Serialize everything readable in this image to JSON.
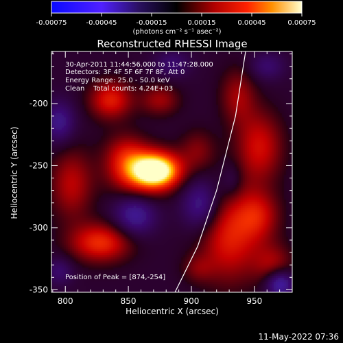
{
  "colorbar": {
    "tick_labels": [
      "-0.00075",
      "-0.00045",
      "-0.00015",
      "0.00015",
      "0.00045",
      "0.00075"
    ],
    "tick_values": [
      -0.00075,
      -0.00045,
      -0.00015,
      0.00015,
      0.00045,
      0.00075
    ],
    "range": [
      -0.00075,
      0.00075
    ],
    "units_label": "(photons cm⁻² s⁻¹ asec⁻²)"
  },
  "annotations": {
    "line1": "30-Apr-2011 11:44:56.000 to 11:47:28.000",
    "line2": "Detectors: 3F 4F 5F 6F 7F 8F, Att 0",
    "line3": "Energy Range: 25.0 - 50.0 keV",
    "line4": "Clean    Total counts: 4.24E+03",
    "peak": "Position of Peak = [874,-254]"
  },
  "timestamp": "11-May-2022 07:36",
  "colors": {
    "background": "#000000",
    "negative": "#2020ff",
    "zero": "#000000",
    "positive_low": "#c00000",
    "positive_mid": "#ff6000",
    "positive_high": "#ffff80"
  },
  "chart_data": {
    "type": "heatmap",
    "title": "Reconstructed RHESSI Image",
    "xlabel": "Heliocentric X (arcsec)",
    "ylabel": "Heliocentric Y (arcsec)",
    "xlim": [
      789,
      980
    ],
    "ylim": [
      -352,
      -158
    ],
    "xticks": [
      800,
      850,
      900,
      950
    ],
    "yticks": [
      -350,
      -300,
      -250,
      -200
    ],
    "colormap": "blue-black-red-yellow-white",
    "peak": [
      874,
      -254
    ],
    "limb_curve": [
      [
        887,
        -352
      ],
      [
        905,
        -315
      ],
      [
        920,
        -270
      ],
      [
        935,
        -210
      ],
      [
        943,
        -158
      ]
    ],
    "sources": [
      {
        "x": 874,
        "y": -254,
        "sx": 13,
        "sy": 10,
        "amp": 0.00075
      },
      {
        "x": 858,
        "y": -256,
        "sx": 16,
        "sy": 13,
        "amp": 0.00045
      },
      {
        "x": 828,
        "y": -312,
        "sx": 17,
        "sy": 11,
        "amp": 0.00045
      },
      {
        "x": 805,
        "y": -265,
        "sx": 12,
        "sy": 20,
        "amp": 0.0003
      },
      {
        "x": 836,
        "y": -197,
        "sx": 12,
        "sy": 11,
        "amp": 0.0004
      },
      {
        "x": 875,
        "y": -197,
        "sx": 11,
        "sy": 9,
        "amp": 0.00025
      },
      {
        "x": 930,
        "y": -307,
        "sx": 17,
        "sy": 26,
        "amp": 0.0004
      },
      {
        "x": 953,
        "y": -290,
        "sx": 12,
        "sy": 14,
        "amp": 0.0003
      },
      {
        "x": 954,
        "y": -235,
        "sx": 13,
        "sy": 20,
        "amp": 0.00035
      },
      {
        "x": 937,
        "y": -194,
        "sx": 10,
        "sy": 16,
        "amp": 0.00025
      },
      {
        "x": 905,
        "y": -238,
        "sx": 10,
        "sy": 12,
        "amp": 0.0002
      },
      {
        "x": 905,
        "y": -333,
        "sx": 9,
        "sy": 8,
        "amp": 0.00015
      },
      {
        "x": 965,
        "y": -330,
        "sx": 11,
        "sy": 12,
        "amp": 0.00025
      },
      {
        "x": 848,
        "y": -240,
        "sx": 12,
        "sy": 12,
        "amp": 0.00025
      },
      {
        "x": 855,
        "y": -290,
        "sx": 12,
        "sy": 12,
        "amp": -0.00035
      },
      {
        "x": 908,
        "y": -282,
        "sx": 11,
        "sy": 15,
        "amp": -0.00035
      },
      {
        "x": 795,
        "y": -215,
        "sx": 9,
        "sy": 12,
        "amp": -0.0003
      },
      {
        "x": 795,
        "y": -335,
        "sx": 8,
        "sy": 8,
        "amp": -0.0002
      },
      {
        "x": 970,
        "y": -345,
        "sx": 8,
        "sy": 8,
        "amp": -0.00045
      },
      {
        "x": 885,
        "y": -168,
        "sx": 10,
        "sy": 8,
        "amp": -0.0002
      },
      {
        "x": 960,
        "y": -170,
        "sx": 10,
        "sy": 8,
        "amp": -0.0002
      },
      {
        "x": 932,
        "y": -262,
        "sx": 6,
        "sy": 10,
        "amp": -0.00015
      }
    ]
  }
}
